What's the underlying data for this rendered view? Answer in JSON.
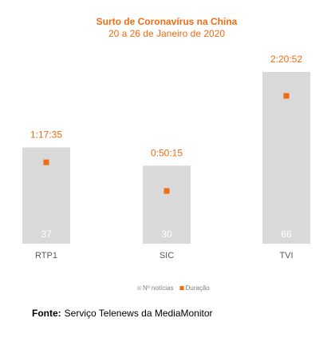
{
  "chart_data": {
    "type": "bar",
    "title": "Surto de Coronavírus na China",
    "subtitle": "20 a 26 de Janeiro de 2020",
    "categories": [
      "RTP1",
      "SIC",
      "TVI"
    ],
    "series": [
      {
        "name": "Nº notícias",
        "color": "#d9d9d9",
        "values": [
          37,
          30,
          66
        ]
      },
      {
        "name": "Duração",
        "color": "#f26b12",
        "values": [
          4655,
          3015,
          8452
        ],
        "value_labels": [
          "1:17:35",
          "0:50:15",
          "2:20:52"
        ]
      }
    ],
    "legend": "bottom",
    "source_label": "Fonte:",
    "source": "Serviço Telenews da MediaMonitor"
  }
}
